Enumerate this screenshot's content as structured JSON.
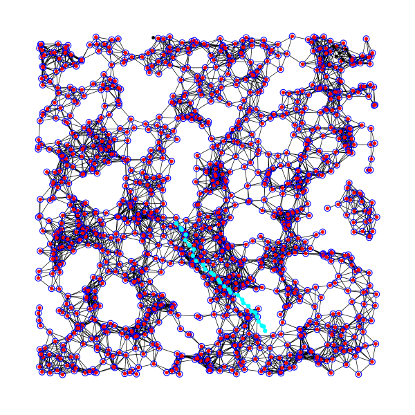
{
  "diagram": {
    "type": "random-geometric-graph",
    "seed": 7,
    "node_count": 1150,
    "connection_radius": 0.058,
    "colors": {
      "background": "#ffffff",
      "edge": "#000000",
      "node_fill": "#ff0000",
      "node_ring": "#0000ff",
      "path": "#00ffff",
      "isolated_node": "#000000"
    },
    "highlighted_path": {
      "color": "#00ffff",
      "waypoints": [
        [
          0.41,
          0.55
        ],
        [
          0.44,
          0.6
        ],
        [
          0.47,
          0.66
        ],
        [
          0.52,
          0.71
        ],
        [
          0.56,
          0.75
        ],
        [
          0.61,
          0.79
        ],
        [
          0.65,
          0.83
        ],
        [
          0.67,
          0.87
        ]
      ]
    },
    "cluster": {
      "color": "#000000",
      "nodes": [
        [
          0.87,
          0.03
        ],
        [
          0.89,
          0.05
        ],
        [
          0.91,
          0.04
        ],
        [
          0.9,
          0.07
        ],
        [
          0.88,
          0.06
        ],
        [
          0.92,
          0.06
        ]
      ]
    },
    "extent": {
      "xmin": 0,
      "xmax": 1,
      "ymin": 0,
      "ymax": 1
    }
  }
}
